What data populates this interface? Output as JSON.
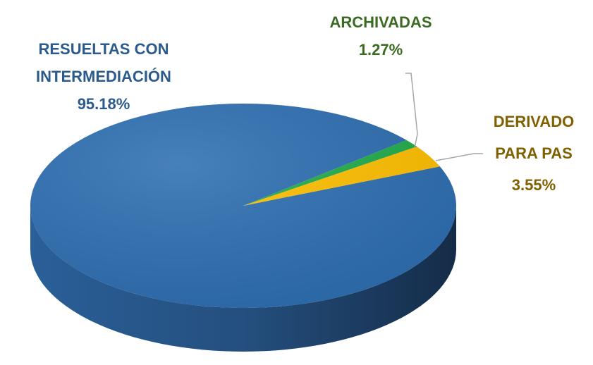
{
  "chart_data": {
    "type": "pie",
    "categories": [
      "RESUELTAS CON INTERMEDIACIÓN",
      "ARCHIVADAS",
      "DERIVADO PARA PAS"
    ],
    "values": [
      95.18,
      1.27,
      3.55
    ],
    "value_labels": [
      "95.18%",
      "1.27%",
      "3.55%"
    ],
    "colors": [
      "#2e6fb2",
      "#21ad4b",
      "#ffc000"
    ],
    "label_colors": [
      "#2b5b8c",
      "#3b6b22",
      "#806000"
    ]
  }
}
